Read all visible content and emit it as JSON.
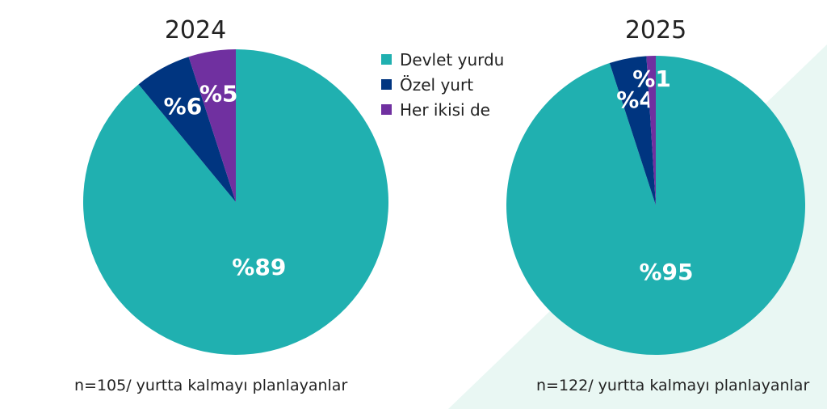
{
  "colors": {
    "Devlet yurdu": "#20b0b0",
    "Özel yurt": "#003580",
    "Her ikisi de": "#7030a0",
    "background_accent": "#e9f7f3"
  },
  "legend": [
    "Devlet yurdu",
    "Özel yurt",
    "Her ikisi de"
  ],
  "chart_data": [
    {
      "type": "pie",
      "title": "2024",
      "note": "n=105/ yurtta kalmayı planlayanlar",
      "slices": [
        {
          "name": "Devlet yurdu",
          "value": 89,
          "label": "%89"
        },
        {
          "name": "Özel yurt",
          "value": 6,
          "label": "%6"
        },
        {
          "name": "Her ikisi de",
          "value": 5,
          "label": "%5"
        }
      ]
    },
    {
      "type": "pie",
      "title": "2025",
      "note": "n=122/ yurtta kalmayı planlayanlar",
      "slices": [
        {
          "name": "Devlet yurdu",
          "value": 95,
          "label": "%95"
        },
        {
          "name": "Özel yurt",
          "value": 4,
          "label": "%4"
        },
        {
          "name": "Her ikisi de",
          "value": 1,
          "label": "%1"
        }
      ]
    }
  ]
}
